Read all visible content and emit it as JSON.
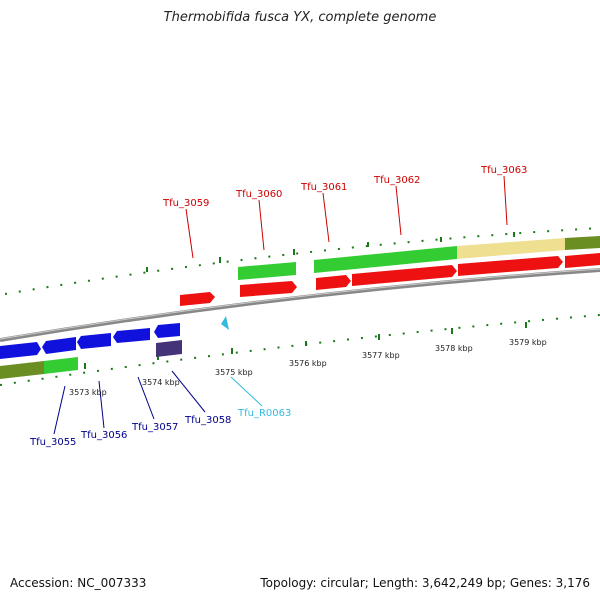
{
  "title": "Thermobifida fusca YX, complete genome",
  "footer": {
    "accession": "Accession: NC_007333",
    "summary": "Topology: circular; Length: 3,642,249 bp; Genes: 3,176"
  },
  "ticks": [
    "3573 kbp",
    "3574 kbp",
    "3575 kbp",
    "3576 kbp",
    "3577 kbp",
    "3578 kbp",
    "3579 kbp"
  ],
  "genes_top": [
    "Tfu_3059",
    "Tfu_3060",
    "Tfu_3061",
    "Tfu_3062",
    "Tfu_3063"
  ],
  "genes_bottom": [
    "Tfu_3055",
    "Tfu_3056",
    "Tfu_3057",
    "Tfu_3058"
  ],
  "rna": "Tfu_R0063",
  "colors": {
    "cds": "#ee1111",
    "gene_fwd": "#33cc33",
    "gene_rev": "#1111dd",
    "olive": "#6b8e23",
    "tan": "#eee090",
    "rna": "#33bbdd",
    "pseudo": "#443377"
  }
}
